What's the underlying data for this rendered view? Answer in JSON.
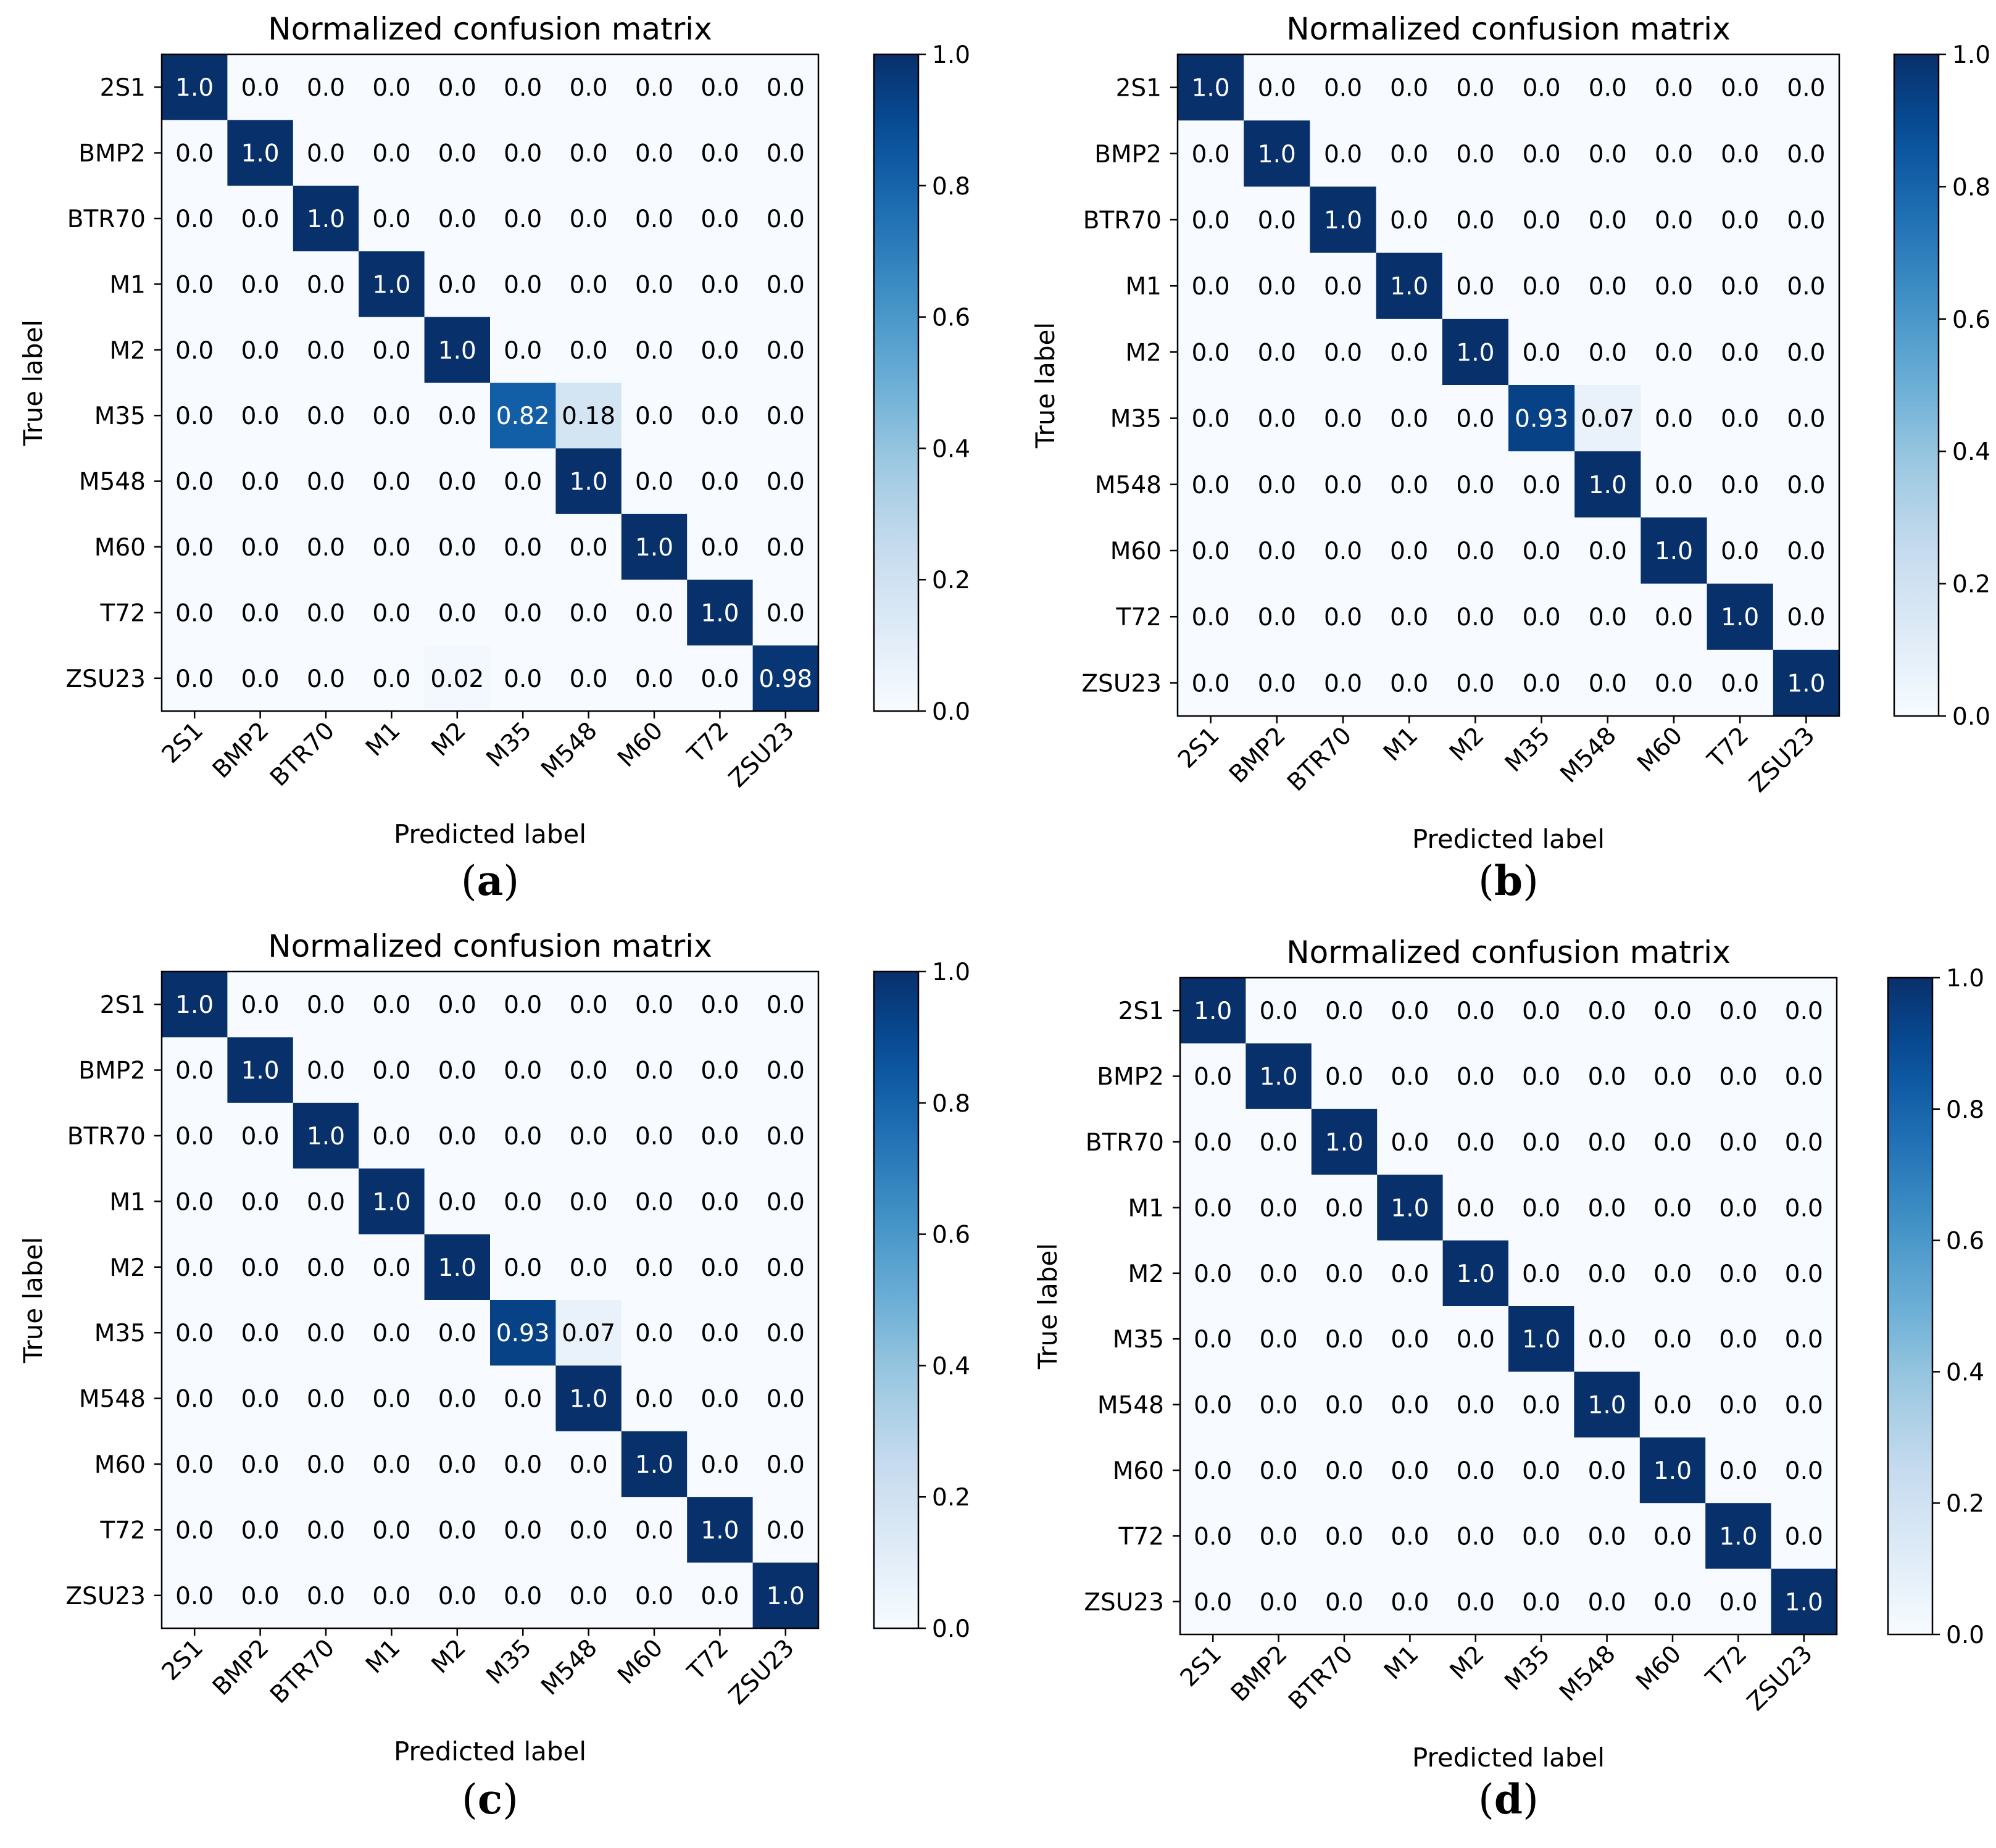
{
  "chart_data": [
    {
      "type": "heatmap",
      "title": "Normalized confusion matrix",
      "xlabel": "Predicted label",
      "ylabel": "True label",
      "caption": "(a)",
      "caption_letter": "a",
      "x_categories": [
        "2S1",
        "BMP2",
        "BTR70",
        "M1",
        "M2",
        "M35",
        "M548",
        "M60",
        "T72",
        "ZSU23"
      ],
      "y_categories": [
        "2S1",
        "BMP2",
        "BTR70",
        "M1",
        "M2",
        "M35",
        "M548",
        "M60",
        "T72",
        "ZSU23"
      ],
      "values": [
        [
          1.0,
          0.0,
          0.0,
          0.0,
          0.0,
          0.0,
          0.0,
          0.0,
          0.0,
          0.0
        ],
        [
          0.0,
          1.0,
          0.0,
          0.0,
          0.0,
          0.0,
          0.0,
          0.0,
          0.0,
          0.0
        ],
        [
          0.0,
          0.0,
          1.0,
          0.0,
          0.0,
          0.0,
          0.0,
          0.0,
          0.0,
          0.0
        ],
        [
          0.0,
          0.0,
          0.0,
          1.0,
          0.0,
          0.0,
          0.0,
          0.0,
          0.0,
          0.0
        ],
        [
          0.0,
          0.0,
          0.0,
          0.0,
          1.0,
          0.0,
          0.0,
          0.0,
          0.0,
          0.0
        ],
        [
          0.0,
          0.0,
          0.0,
          0.0,
          0.0,
          0.82,
          0.18,
          0.0,
          0.0,
          0.0
        ],
        [
          0.0,
          0.0,
          0.0,
          0.0,
          0.0,
          0.0,
          1.0,
          0.0,
          0.0,
          0.0
        ],
        [
          0.0,
          0.0,
          0.0,
          0.0,
          0.0,
          0.0,
          0.0,
          1.0,
          0.0,
          0.0
        ],
        [
          0.0,
          0.0,
          0.0,
          0.0,
          0.0,
          0.0,
          0.0,
          0.0,
          1.0,
          0.0
        ],
        [
          0.0,
          0.0,
          0.0,
          0.0,
          0.02,
          0.0,
          0.0,
          0.0,
          0.0,
          0.98
        ]
      ],
      "value_labels": [
        [
          "1.0",
          "0.0",
          "0.0",
          "0.0",
          "0.0",
          "0.0",
          "0.0",
          "0.0",
          "0.0",
          "0.0"
        ],
        [
          "0.0",
          "1.0",
          "0.0",
          "0.0",
          "0.0",
          "0.0",
          "0.0",
          "0.0",
          "0.0",
          "0.0"
        ],
        [
          "0.0",
          "0.0",
          "1.0",
          "0.0",
          "0.0",
          "0.0",
          "0.0",
          "0.0",
          "0.0",
          "0.0"
        ],
        [
          "0.0",
          "0.0",
          "0.0",
          "1.0",
          "0.0",
          "0.0",
          "0.0",
          "0.0",
          "0.0",
          "0.0"
        ],
        [
          "0.0",
          "0.0",
          "0.0",
          "0.0",
          "1.0",
          "0.0",
          "0.0",
          "0.0",
          "0.0",
          "0.0"
        ],
        [
          "0.0",
          "0.0",
          "0.0",
          "0.0",
          "0.0",
          "0.82",
          "0.18",
          "0.0",
          "0.0",
          "0.0"
        ],
        [
          "0.0",
          "0.0",
          "0.0",
          "0.0",
          "0.0",
          "0.0",
          "1.0",
          "0.0",
          "0.0",
          "0.0"
        ],
        [
          "0.0",
          "0.0",
          "0.0",
          "0.0",
          "0.0",
          "0.0",
          "0.0",
          "1.0",
          "0.0",
          "0.0"
        ],
        [
          "0.0",
          "0.0",
          "0.0",
          "0.0",
          "0.0",
          "0.0",
          "0.0",
          "0.0",
          "1.0",
          "0.0"
        ],
        [
          "0.0",
          "0.0",
          "0.0",
          "0.0",
          "0.02",
          "0.0",
          "0.0",
          "0.0",
          "0.0",
          "0.98"
        ]
      ],
      "colorbar": {
        "range": [
          0.0,
          1.0
        ],
        "ticks": [
          "0.0",
          "0.2",
          "0.4",
          "0.6",
          "0.8",
          "1.0"
        ],
        "colormap": "Blues"
      }
    },
    {
      "type": "heatmap",
      "title": "Normalized confusion matrix",
      "xlabel": "Predicted label",
      "ylabel": "True label",
      "caption": "(b)",
      "caption_letter": "b",
      "x_categories": [
        "2S1",
        "BMP2",
        "BTR70",
        "M1",
        "M2",
        "M35",
        "M548",
        "M60",
        "T72",
        "ZSU23"
      ],
      "y_categories": [
        "2S1",
        "BMP2",
        "BTR70",
        "M1",
        "M2",
        "M35",
        "M548",
        "M60",
        "T72",
        "ZSU23"
      ],
      "values": [
        [
          1.0,
          0.0,
          0.0,
          0.0,
          0.0,
          0.0,
          0.0,
          0.0,
          0.0,
          0.0
        ],
        [
          0.0,
          1.0,
          0.0,
          0.0,
          0.0,
          0.0,
          0.0,
          0.0,
          0.0,
          0.0
        ],
        [
          0.0,
          0.0,
          1.0,
          0.0,
          0.0,
          0.0,
          0.0,
          0.0,
          0.0,
          0.0
        ],
        [
          0.0,
          0.0,
          0.0,
          1.0,
          0.0,
          0.0,
          0.0,
          0.0,
          0.0,
          0.0
        ],
        [
          0.0,
          0.0,
          0.0,
          0.0,
          1.0,
          0.0,
          0.0,
          0.0,
          0.0,
          0.0
        ],
        [
          0.0,
          0.0,
          0.0,
          0.0,
          0.0,
          0.93,
          0.07,
          0.0,
          0.0,
          0.0
        ],
        [
          0.0,
          0.0,
          0.0,
          0.0,
          0.0,
          0.0,
          1.0,
          0.0,
          0.0,
          0.0
        ],
        [
          0.0,
          0.0,
          0.0,
          0.0,
          0.0,
          0.0,
          0.0,
          1.0,
          0.0,
          0.0
        ],
        [
          0.0,
          0.0,
          0.0,
          0.0,
          0.0,
          0.0,
          0.0,
          0.0,
          1.0,
          0.0
        ],
        [
          0.0,
          0.0,
          0.0,
          0.0,
          0.0,
          0.0,
          0.0,
          0.0,
          0.0,
          1.0
        ]
      ],
      "value_labels": [
        [
          "1.0",
          "0.0",
          "0.0",
          "0.0",
          "0.0",
          "0.0",
          "0.0",
          "0.0",
          "0.0",
          "0.0"
        ],
        [
          "0.0",
          "1.0",
          "0.0",
          "0.0",
          "0.0",
          "0.0",
          "0.0",
          "0.0",
          "0.0",
          "0.0"
        ],
        [
          "0.0",
          "0.0",
          "1.0",
          "0.0",
          "0.0",
          "0.0",
          "0.0",
          "0.0",
          "0.0",
          "0.0"
        ],
        [
          "0.0",
          "0.0",
          "0.0",
          "1.0",
          "0.0",
          "0.0",
          "0.0",
          "0.0",
          "0.0",
          "0.0"
        ],
        [
          "0.0",
          "0.0",
          "0.0",
          "0.0",
          "1.0",
          "0.0",
          "0.0",
          "0.0",
          "0.0",
          "0.0"
        ],
        [
          "0.0",
          "0.0",
          "0.0",
          "0.0",
          "0.0",
          "0.93",
          "0.07",
          "0.0",
          "0.0",
          "0.0"
        ],
        [
          "0.0",
          "0.0",
          "0.0",
          "0.0",
          "0.0",
          "0.0",
          "1.0",
          "0.0",
          "0.0",
          "0.0"
        ],
        [
          "0.0",
          "0.0",
          "0.0",
          "0.0",
          "0.0",
          "0.0",
          "0.0",
          "1.0",
          "0.0",
          "0.0"
        ],
        [
          "0.0",
          "0.0",
          "0.0",
          "0.0",
          "0.0",
          "0.0",
          "0.0",
          "0.0",
          "1.0",
          "0.0"
        ],
        [
          "0.0",
          "0.0",
          "0.0",
          "0.0",
          "0.0",
          "0.0",
          "0.0",
          "0.0",
          "0.0",
          "1.0"
        ]
      ],
      "colorbar": {
        "range": [
          0.0,
          1.0
        ],
        "ticks": [
          "0.0",
          "0.2",
          "0.4",
          "0.6",
          "0.8",
          "1.0"
        ],
        "colormap": "Blues"
      }
    },
    {
      "type": "heatmap",
      "title": "Normalized confusion matrix",
      "xlabel": "Predicted label",
      "ylabel": "True label",
      "caption": "(c)",
      "caption_letter": "c",
      "x_categories": [
        "2S1",
        "BMP2",
        "BTR70",
        "M1",
        "M2",
        "M35",
        "M548",
        "M60",
        "T72",
        "ZSU23"
      ],
      "y_categories": [
        "2S1",
        "BMP2",
        "BTR70",
        "M1",
        "M2",
        "M35",
        "M548",
        "M60",
        "T72",
        "ZSU23"
      ],
      "values": [
        [
          1.0,
          0.0,
          0.0,
          0.0,
          0.0,
          0.0,
          0.0,
          0.0,
          0.0,
          0.0
        ],
        [
          0.0,
          1.0,
          0.0,
          0.0,
          0.0,
          0.0,
          0.0,
          0.0,
          0.0,
          0.0
        ],
        [
          0.0,
          0.0,
          1.0,
          0.0,
          0.0,
          0.0,
          0.0,
          0.0,
          0.0,
          0.0
        ],
        [
          0.0,
          0.0,
          0.0,
          1.0,
          0.0,
          0.0,
          0.0,
          0.0,
          0.0,
          0.0
        ],
        [
          0.0,
          0.0,
          0.0,
          0.0,
          1.0,
          0.0,
          0.0,
          0.0,
          0.0,
          0.0
        ],
        [
          0.0,
          0.0,
          0.0,
          0.0,
          0.0,
          0.93,
          0.07,
          0.0,
          0.0,
          0.0
        ],
        [
          0.0,
          0.0,
          0.0,
          0.0,
          0.0,
          0.0,
          1.0,
          0.0,
          0.0,
          0.0
        ],
        [
          0.0,
          0.0,
          0.0,
          0.0,
          0.0,
          0.0,
          0.0,
          1.0,
          0.0,
          0.0
        ],
        [
          0.0,
          0.0,
          0.0,
          0.0,
          0.0,
          0.0,
          0.0,
          0.0,
          1.0,
          0.0
        ],
        [
          0.0,
          0.0,
          0.0,
          0.0,
          0.0,
          0.0,
          0.0,
          0.0,
          0.0,
          1.0
        ]
      ],
      "value_labels": [
        [
          "1.0",
          "0.0",
          "0.0",
          "0.0",
          "0.0",
          "0.0",
          "0.0",
          "0.0",
          "0.0",
          "0.0"
        ],
        [
          "0.0",
          "1.0",
          "0.0",
          "0.0",
          "0.0",
          "0.0",
          "0.0",
          "0.0",
          "0.0",
          "0.0"
        ],
        [
          "0.0",
          "0.0",
          "1.0",
          "0.0",
          "0.0",
          "0.0",
          "0.0",
          "0.0",
          "0.0",
          "0.0"
        ],
        [
          "0.0",
          "0.0",
          "0.0",
          "1.0",
          "0.0",
          "0.0",
          "0.0",
          "0.0",
          "0.0",
          "0.0"
        ],
        [
          "0.0",
          "0.0",
          "0.0",
          "0.0",
          "1.0",
          "0.0",
          "0.0",
          "0.0",
          "0.0",
          "0.0"
        ],
        [
          "0.0",
          "0.0",
          "0.0",
          "0.0",
          "0.0",
          "0.93",
          "0.07",
          "0.0",
          "0.0",
          "0.0"
        ],
        [
          "0.0",
          "0.0",
          "0.0",
          "0.0",
          "0.0",
          "0.0",
          "1.0",
          "0.0",
          "0.0",
          "0.0"
        ],
        [
          "0.0",
          "0.0",
          "0.0",
          "0.0",
          "0.0",
          "0.0",
          "0.0",
          "1.0",
          "0.0",
          "0.0"
        ],
        [
          "0.0",
          "0.0",
          "0.0",
          "0.0",
          "0.0",
          "0.0",
          "0.0",
          "0.0",
          "1.0",
          "0.0"
        ],
        [
          "0.0",
          "0.0",
          "0.0",
          "0.0",
          "0.0",
          "0.0",
          "0.0",
          "0.0",
          "0.0",
          "1.0"
        ]
      ],
      "colorbar": {
        "range": [
          0.0,
          1.0
        ],
        "ticks": [
          "0.0",
          "0.2",
          "0.4",
          "0.6",
          "0.8",
          "1.0"
        ],
        "colormap": "Blues"
      }
    },
    {
      "type": "heatmap",
      "title": "Normalized confusion matrix",
      "xlabel": "Predicted label",
      "ylabel": "True label",
      "caption": "(d)",
      "caption_letter": "d",
      "x_categories": [
        "2S1",
        "BMP2",
        "BTR70",
        "M1",
        "M2",
        "M35",
        "M548",
        "M60",
        "T72",
        "ZSU23"
      ],
      "y_categories": [
        "2S1",
        "BMP2",
        "BTR70",
        "M1",
        "M2",
        "M35",
        "M548",
        "M60",
        "T72",
        "ZSU23"
      ],
      "values": [
        [
          1.0,
          0.0,
          0.0,
          0.0,
          0.0,
          0.0,
          0.0,
          0.0,
          0.0,
          0.0
        ],
        [
          0.0,
          1.0,
          0.0,
          0.0,
          0.0,
          0.0,
          0.0,
          0.0,
          0.0,
          0.0
        ],
        [
          0.0,
          0.0,
          1.0,
          0.0,
          0.0,
          0.0,
          0.0,
          0.0,
          0.0,
          0.0
        ],
        [
          0.0,
          0.0,
          0.0,
          1.0,
          0.0,
          0.0,
          0.0,
          0.0,
          0.0,
          0.0
        ],
        [
          0.0,
          0.0,
          0.0,
          0.0,
          1.0,
          0.0,
          0.0,
          0.0,
          0.0,
          0.0
        ],
        [
          0.0,
          0.0,
          0.0,
          0.0,
          0.0,
          1.0,
          0.0,
          0.0,
          0.0,
          0.0
        ],
        [
          0.0,
          0.0,
          0.0,
          0.0,
          0.0,
          0.0,
          1.0,
          0.0,
          0.0,
          0.0
        ],
        [
          0.0,
          0.0,
          0.0,
          0.0,
          0.0,
          0.0,
          0.0,
          1.0,
          0.0,
          0.0
        ],
        [
          0.0,
          0.0,
          0.0,
          0.0,
          0.0,
          0.0,
          0.0,
          0.0,
          1.0,
          0.0
        ],
        [
          0.0,
          0.0,
          0.0,
          0.0,
          0.0,
          0.0,
          0.0,
          0.0,
          0.0,
          1.0
        ]
      ],
      "value_labels": [
        [
          "1.0",
          "0.0",
          "0.0",
          "0.0",
          "0.0",
          "0.0",
          "0.0",
          "0.0",
          "0.0",
          "0.0"
        ],
        [
          "0.0",
          "1.0",
          "0.0",
          "0.0",
          "0.0",
          "0.0",
          "0.0",
          "0.0",
          "0.0",
          "0.0"
        ],
        [
          "0.0",
          "0.0",
          "1.0",
          "0.0",
          "0.0",
          "0.0",
          "0.0",
          "0.0",
          "0.0",
          "0.0"
        ],
        [
          "0.0",
          "0.0",
          "0.0",
          "1.0",
          "0.0",
          "0.0",
          "0.0",
          "0.0",
          "0.0",
          "0.0"
        ],
        [
          "0.0",
          "0.0",
          "0.0",
          "0.0",
          "1.0",
          "0.0",
          "0.0",
          "0.0",
          "0.0",
          "0.0"
        ],
        [
          "0.0",
          "0.0",
          "0.0",
          "0.0",
          "0.0",
          "1.0",
          "0.0",
          "0.0",
          "0.0",
          "0.0"
        ],
        [
          "0.0",
          "0.0",
          "0.0",
          "0.0",
          "0.0",
          "0.0",
          "1.0",
          "0.0",
          "0.0",
          "0.0"
        ],
        [
          "0.0",
          "0.0",
          "0.0",
          "0.0",
          "0.0",
          "0.0",
          "0.0",
          "1.0",
          "0.0",
          "0.0"
        ],
        [
          "0.0",
          "0.0",
          "0.0",
          "0.0",
          "0.0",
          "0.0",
          "0.0",
          "0.0",
          "1.0",
          "0.0"
        ],
        [
          "0.0",
          "0.0",
          "0.0",
          "0.0",
          "0.0",
          "0.0",
          "0.0",
          "0.0",
          "0.0",
          "1.0"
        ]
      ],
      "colorbar": {
        "range": [
          0.0,
          1.0
        ],
        "ticks": [
          "0.0",
          "0.2",
          "0.4",
          "0.6",
          "0.8",
          "1.0"
        ],
        "colormap": "Blues"
      }
    }
  ]
}
